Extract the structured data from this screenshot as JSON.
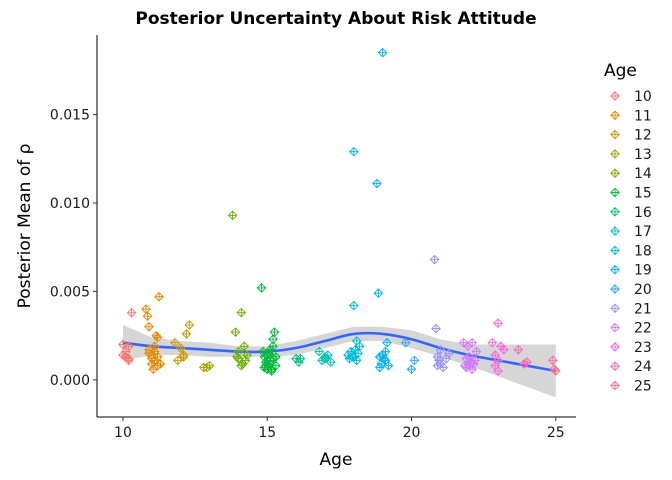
{
  "chart_data": {
    "type": "scatter",
    "title": "Posterior Uncertainty About Risk Attitude",
    "xlabel": "Age",
    "ylabel": "Posterior Mean of ρ",
    "xlim": [
      9.1,
      25.7
    ],
    "ylim": [
      -0.0021,
      0.0195
    ],
    "xticks": [
      10,
      15,
      20,
      25
    ],
    "xtick_labels": [
      "10",
      "15",
      "20",
      "25"
    ],
    "yticks": [
      0.0,
      0.005,
      0.01,
      0.015
    ],
    "ytick_labels": [
      "0.000",
      "0.005",
      "0.010",
      "0.015"
    ],
    "grid": false,
    "legend": {
      "title": "Age",
      "placement": "right",
      "entries": [
        "10",
        "11",
        "12",
        "13",
        "14",
        "15",
        "16",
        "17",
        "18",
        "19",
        "20",
        "21",
        "22",
        "23",
        "24",
        "25"
      ]
    },
    "marker": "diamond-plus",
    "series": [
      {
        "name": "10",
        "color": "#F8766D",
        "x": [
          10.0,
          10.1,
          10.2,
          10.2,
          10.3,
          10.0,
          10.1,
          10.2
        ],
        "y": [
          0.0014,
          0.0016,
          0.0011,
          0.0019,
          0.0038,
          0.002,
          0.0013,
          0.0012
        ]
      },
      {
        "name": "11",
        "color": "#E58700",
        "x": [
          10.8,
          10.85,
          10.9,
          10.9,
          11.0,
          11.0,
          11.05,
          11.1,
          11.1,
          11.15,
          11.2,
          11.2,
          11.25,
          11.3,
          10.9,
          11.0,
          11.1,
          11.2
        ],
        "y": [
          0.004,
          0.0036,
          0.003,
          0.0015,
          0.0012,
          0.0009,
          0.0006,
          0.0016,
          0.0011,
          0.0025,
          0.0024,
          0.0013,
          0.0047,
          0.0009,
          0.0017,
          0.0014,
          0.0019,
          0.0008
        ]
      },
      {
        "name": "12",
        "color": "#C99800",
        "x": [
          11.8,
          11.9,
          12.0,
          12.1,
          12.2,
          12.3,
          12.1
        ],
        "y": [
          0.0021,
          0.0011,
          0.0018,
          0.0014,
          0.0026,
          0.0031,
          0.0013
        ]
      },
      {
        "name": "13",
        "color": "#A3A500",
        "x": [
          12.8,
          12.9,
          13.0
        ],
        "y": [
          0.0007,
          0.0007,
          0.0008
        ]
      },
      {
        "name": "14",
        "color": "#6BB100",
        "x": [
          13.8,
          13.9,
          14.0,
          14.1,
          14.2,
          14.3,
          14.0,
          14.15,
          13.95,
          14.25,
          14.1
        ],
        "y": [
          0.0093,
          0.0027,
          0.0016,
          0.0038,
          0.0019,
          0.0014,
          0.0012,
          0.0009,
          0.0013,
          0.0011,
          0.0008
        ]
      },
      {
        "name": "15",
        "color": "#00BA38",
        "x": [
          14.8,
          14.85,
          14.9,
          14.95,
          15.0,
          15.0,
          15.05,
          15.1,
          15.1,
          15.15,
          15.2,
          15.2,
          15.25,
          15.3,
          15.3,
          14.9,
          15.0,
          15.1,
          15.2,
          14.95,
          15.15
        ],
        "y": [
          0.0052,
          0.0016,
          0.0013,
          0.0008,
          0.0011,
          0.0006,
          0.0015,
          0.0017,
          0.0009,
          0.0005,
          0.0023,
          0.0012,
          0.0027,
          0.0013,
          0.0008,
          0.0007,
          0.0014,
          0.0011,
          0.0019,
          0.001,
          0.0006
        ]
      },
      {
        "name": "16",
        "color": "#00BF7D",
        "x": [
          16.0,
          16.1,
          16.15
        ],
        "y": [
          0.0012,
          0.001,
          0.0012
        ]
      },
      {
        "name": "17",
        "color": "#00C0AF",
        "x": [
          16.8,
          16.9,
          17.0,
          17.1,
          17.2,
          17.0
        ],
        "y": [
          0.0016,
          0.0011,
          0.0013,
          0.0014,
          0.001,
          0.0012
        ]
      },
      {
        "name": "18",
        "color": "#00BCD8",
        "x": [
          17.8,
          17.85,
          17.9,
          17.95,
          18.0,
          18.0,
          18.05,
          18.1,
          18.1,
          18.15,
          18.2,
          18.0
        ],
        "y": [
          0.0014,
          0.0012,
          0.0016,
          0.0013,
          0.0129,
          0.0042,
          0.0017,
          0.0022,
          0.0011,
          0.0015,
          0.0019,
          0.0013
        ]
      },
      {
        "name": "19",
        "color": "#00B0F6",
        "x": [
          18.8,
          18.85,
          18.9,
          18.95,
          19.0,
          19.05,
          19.1,
          19.15,
          19.2,
          19.0,
          19.1,
          18.9
        ],
        "y": [
          0.0111,
          0.0049,
          0.0013,
          0.0009,
          0.0185,
          0.0012,
          0.0016,
          0.0021,
          0.0008,
          0.0014,
          0.0011,
          0.0007
        ]
      },
      {
        "name": "20",
        "color": "#35A2FF",
        "x": [
          19.8,
          20.0,
          20.1
        ],
        "y": [
          0.0021,
          0.0006,
          0.0011
        ]
      },
      {
        "name": "21",
        "color": "#9590FF",
        "x": [
          20.8,
          20.85,
          20.9,
          20.95,
          21.0,
          21.0,
          21.1,
          21.2,
          21.3,
          20.9
        ],
        "y": [
          0.0068,
          0.0029,
          0.0013,
          0.0011,
          0.0017,
          0.0009,
          0.0007,
          0.0012,
          0.0015,
          0.0008
        ]
      },
      {
        "name": "22",
        "color": "#D376FF",
        "x": [
          21.8,
          21.85,
          21.9,
          21.95,
          22.0,
          22.05,
          22.1,
          22.15,
          22.2,
          22.25,
          21.9,
          22.0,
          22.1
        ],
        "y": [
          0.0021,
          0.0008,
          0.0007,
          0.0019,
          0.0013,
          0.001,
          0.0021,
          0.0009,
          0.0011,
          0.0016,
          0.0012,
          0.0008,
          0.0006
        ]
      },
      {
        "name": "23",
        "color": "#F763E0",
        "x": [
          22.8,
          22.9,
          23.0,
          23.0,
          23.1,
          23.2,
          23.0,
          22.9
        ],
        "y": [
          0.0021,
          0.0014,
          0.0032,
          0.0011,
          0.0019,
          0.0017,
          0.0005,
          0.0008
        ]
      },
      {
        "name": "24",
        "color": "#FF62BC",
        "x": [
          23.7,
          23.9,
          24.0
        ],
        "y": [
          0.0017,
          0.0009,
          0.001
        ]
      },
      {
        "name": "25",
        "color": "#FF6C91",
        "x": [
          24.9,
          24.95,
          25.0
        ],
        "y": [
          0.0011,
          0.0006,
          0.0005
        ]
      }
    ],
    "smooth": {
      "color": "#3366FF",
      "band_color": "#999999",
      "x": [
        10.0,
        11.0,
        12.0,
        13.0,
        14.0,
        15.0,
        16.0,
        17.0,
        18.0,
        19.0,
        20.0,
        21.0,
        22.0,
        23.0,
        24.0,
        25.0
      ],
      "y": [
        0.0021,
        0.0019,
        0.0018,
        0.0017,
        0.0016,
        0.0016,
        0.0018,
        0.0022,
        0.0026,
        0.0026,
        0.0023,
        0.0018,
        0.0014,
        0.0011,
        0.0008,
        0.0005
      ],
      "ymin": [
        0.0011,
        0.0014,
        0.0014,
        0.0013,
        0.0013,
        0.0013,
        0.0014,
        0.0018,
        0.0022,
        0.0022,
        0.0018,
        0.0013,
        0.0008,
        0.0002,
        -0.0004,
        -0.001
      ],
      "ymax": [
        0.0031,
        0.0024,
        0.0022,
        0.0021,
        0.0019,
        0.0019,
        0.0022,
        0.0026,
        0.003,
        0.003,
        0.0028,
        0.0023,
        0.002,
        0.002,
        0.002,
        0.002
      ]
    }
  }
}
